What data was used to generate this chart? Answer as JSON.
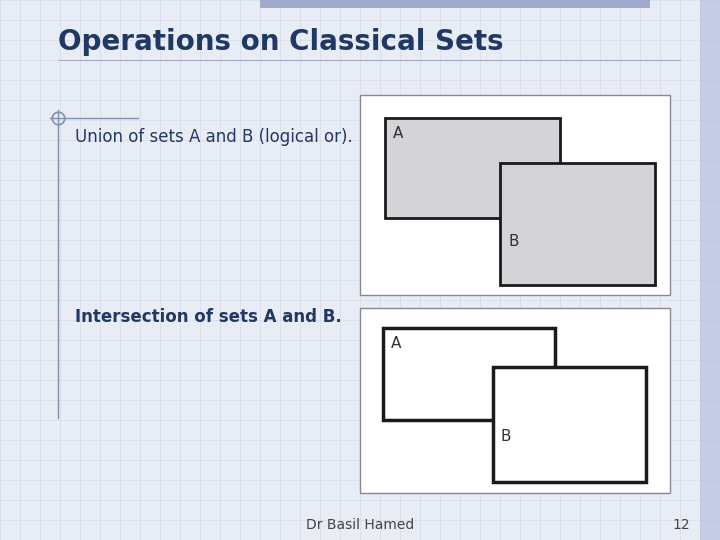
{
  "title": "Operations on Classical Sets",
  "title_color": "#1F3864",
  "title_fontsize": 20,
  "bg_color": "#E8ECF5",
  "text1": "Union of sets A and B (logical or).",
  "text2": "Intersection of sets A and B.",
  "text_color": "#1F3864",
  "text_fontsize": 12,
  "footer_text": "Dr Basil Hamed",
  "footer_page": "12",
  "footer_fontsize": 10,
  "rect_fill": "#D3D3D8",
  "rect_edge": "#1a1a1a",
  "box_edge": "#888899",
  "white_fill": "#FFFFFF",
  "grid_color": "#C8CEDD"
}
